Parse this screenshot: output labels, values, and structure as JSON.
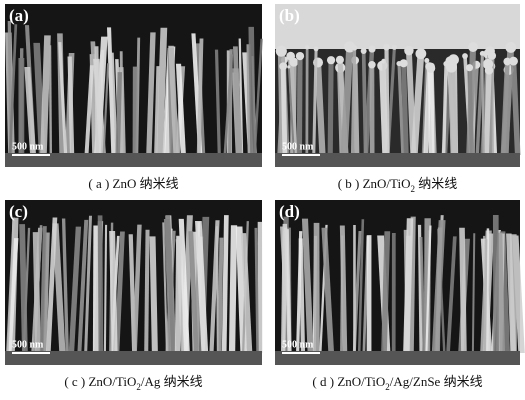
{
  "figure": {
    "panels": [
      {
        "label": "(a)",
        "scale_bar": "500 nm",
        "caption": [
          "( a ) ZnO 纳米线"
        ]
      },
      {
        "label": "(b)",
        "scale_bar": "500 nm",
        "caption": [
          "( b ) ZnO/TiO",
          "2",
          " 纳米线"
        ]
      },
      {
        "label": "(c)",
        "scale_bar": "500 nm",
        "caption": [
          "( c ) ZnO/TiO",
          "2",
          "/Ag 纳米线"
        ]
      },
      {
        "label": "(d)",
        "scale_bar": "500 nm",
        "caption": [
          "( d ) ZnO/TiO",
          "2",
          "/Ag/ZnSe 纳米线"
        ]
      }
    ]
  }
}
